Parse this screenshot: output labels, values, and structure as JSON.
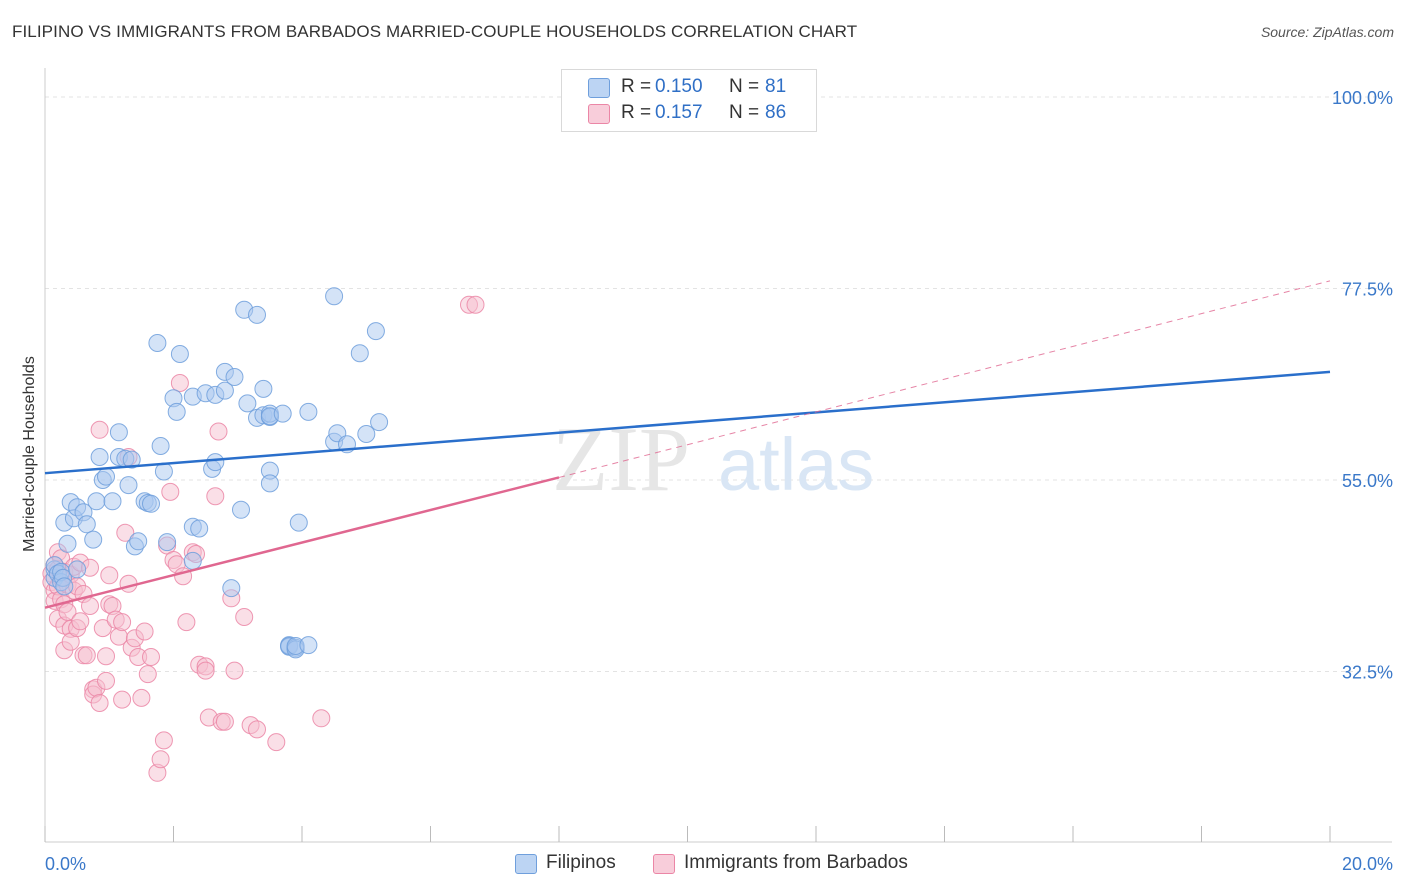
{
  "title": "FILIPINO VS IMMIGRANTS FROM BARBADOS MARRIED-COUPLE HOUSEHOLDS CORRELATION CHART",
  "source": "Source: ZipAtlas.com",
  "watermark": {
    "zip": "ZIP",
    "atlas": "atlas"
  },
  "legend_top": [
    {
      "r_label": "R =",
      "r_value": "0.150",
      "n_label": "N =",
      "n_value": "81"
    },
    {
      "r_label": "R =",
      "r_value": "0.157",
      "n_label": "N =",
      "n_value": "86"
    }
  ],
  "legend_bottom": [
    "Filipinos",
    "Immigrants from Barbados"
  ],
  "colors": {
    "blue_fill": "#a9c8ef",
    "blue_stroke": "#6f9fdc",
    "blue_line": "#2a6fcb",
    "pink_fill": "#f6bfd0",
    "pink_stroke": "#eb86a6",
    "pink_line": "#e06790",
    "tick_label": "#3a78c9",
    "grid": "#e3e3e3"
  },
  "chart_data": {
    "type": "scatter",
    "title": "FILIPINO VS IMMIGRANTS FROM BARBADOS MARRIED-COUPLE HOUSEHOLDS CORRELATION CHART",
    "xlabel": "",
    "ylabel": "Married-couple Households",
    "xlim": [
      0,
      20
    ],
    "ylim": [
      10,
      100
    ],
    "x_tick_labels": [
      "0.0%",
      "20.0%"
    ],
    "y_ticks": [
      32.5,
      55.0,
      77.5,
      100.0
    ],
    "y_tick_labels": [
      "32.5%",
      "55.0%",
      "77.5%",
      "100.0%"
    ],
    "grid": true,
    "legend_position": "top-center",
    "series": [
      {
        "name": "Filipinos",
        "color": "#6f9fdc",
        "R": 0.15,
        "N": 81,
        "trend": {
          "x": [
            0,
            20
          ],
          "y": [
            55.8,
            67.7
          ],
          "style": "solid"
        },
        "points": [
          [
            0.15,
            43.5
          ],
          [
            0.15,
            44.5
          ],
          [
            0.15,
            45
          ],
          [
            0.2,
            44
          ],
          [
            0.25,
            43
          ],
          [
            0.25,
            44.2
          ],
          [
            0.28,
            43.5
          ],
          [
            0.3,
            42.5
          ],
          [
            0.3,
            50
          ],
          [
            0.35,
            47.5
          ],
          [
            0.4,
            52.4
          ],
          [
            0.45,
            50.5
          ],
          [
            0.5,
            51.8
          ],
          [
            0.5,
            44.5
          ],
          [
            0.6,
            51.2
          ],
          [
            0.65,
            49.8
          ],
          [
            0.75,
            48
          ],
          [
            0.8,
            52.5
          ],
          [
            0.85,
            57.7
          ],
          [
            0.9,
            55
          ],
          [
            0.95,
            55.4
          ],
          [
            1.05,
            52.5
          ],
          [
            1.15,
            60.6
          ],
          [
            1.15,
            57.7
          ],
          [
            1.25,
            57.5
          ],
          [
            1.3,
            54.4
          ],
          [
            1.35,
            57.4
          ],
          [
            1.4,
            47.2
          ],
          [
            1.45,
            47.8
          ],
          [
            1.55,
            52.5
          ],
          [
            1.6,
            52.3
          ],
          [
            1.65,
            52.2
          ],
          [
            1.75,
            71.1
          ],
          [
            1.8,
            59
          ],
          [
            1.85,
            56
          ],
          [
            1.9,
            47.7
          ],
          [
            2,
            64.6
          ],
          [
            2.05,
            63
          ],
          [
            2.1,
            69.8
          ],
          [
            2.3,
            45.5
          ],
          [
            2.3,
            64.8
          ],
          [
            2.3,
            49.5
          ],
          [
            2.4,
            49.3
          ],
          [
            2.5,
            65.2
          ],
          [
            2.6,
            56.3
          ],
          [
            2.65,
            65
          ],
          [
            2.65,
            57.1
          ],
          [
            2.8,
            65.5
          ],
          [
            2.8,
            67.7
          ],
          [
            2.9,
            42.3
          ],
          [
            2.95,
            67.1
          ],
          [
            3.05,
            51.5
          ],
          [
            3.1,
            75
          ],
          [
            3.15,
            64
          ],
          [
            3.3,
            74.4
          ],
          [
            3.3,
            62.3
          ],
          [
            3.4,
            62.6
          ],
          [
            3.4,
            65.7
          ],
          [
            3.5,
            56.1
          ],
          [
            3.5,
            62.4
          ],
          [
            3.5,
            54.6
          ],
          [
            3.5,
            62.8
          ],
          [
            3.5,
            62.5
          ],
          [
            3.7,
            62.8
          ],
          [
            3.8,
            35.6
          ],
          [
            3.8,
            35.4
          ],
          [
            3.8,
            35.5
          ],
          [
            3.9,
            35.3
          ],
          [
            3.9,
            35.1
          ],
          [
            3.9,
            35.5
          ],
          [
            3.95,
            50
          ],
          [
            4.1,
            63
          ],
          [
            4.1,
            35.6
          ],
          [
            4.5,
            76.6
          ],
          [
            4.5,
            59.5
          ],
          [
            4.55,
            60.5
          ],
          [
            4.7,
            59.2
          ],
          [
            4.9,
            69.9
          ],
          [
            5,
            60.4
          ],
          [
            5.2,
            61.8
          ],
          [
            5.15,
            72.5
          ]
        ]
      },
      {
        "name": "Immigrants from Barbados",
        "color": "#eb86a6",
        "R": 0.157,
        "N": 86,
        "trend": {
          "x": [
            0,
            8
          ],
          "y": [
            40,
            55.3
          ],
          "style": "solid",
          "dashed_extension": {
            "x": [
              8,
              20
            ],
            "y": [
              55.3,
              78.4
            ]
          }
        },
        "points": [
          [
            0.1,
            44
          ],
          [
            0.1,
            43
          ],
          [
            0.15,
            45
          ],
          [
            0.15,
            42
          ],
          [
            0.15,
            40.8
          ],
          [
            0.2,
            46.5
          ],
          [
            0.2,
            44.5
          ],
          [
            0.2,
            42.5
          ],
          [
            0.2,
            38.7
          ],
          [
            0.25,
            45.8
          ],
          [
            0.25,
            43.5
          ],
          [
            0.25,
            41
          ],
          [
            0.3,
            44.2
          ],
          [
            0.3,
            40.4
          ],
          [
            0.3,
            37.9
          ],
          [
            0.3,
            35
          ],
          [
            0.35,
            42.7
          ],
          [
            0.35,
            39.5
          ],
          [
            0.4,
            43.9
          ],
          [
            0.4,
            37.5
          ],
          [
            0.4,
            36
          ],
          [
            0.45,
            44.8
          ],
          [
            0.45,
            42
          ],
          [
            0.5,
            42.5
          ],
          [
            0.5,
            37.6
          ],
          [
            0.55,
            45.3
          ],
          [
            0.55,
            38.4
          ],
          [
            0.6,
            41.6
          ],
          [
            0.6,
            34.4
          ],
          [
            0.65,
            34.4
          ],
          [
            0.7,
            44.7
          ],
          [
            0.7,
            40.2
          ],
          [
            0.75,
            30.4
          ],
          [
            0.75,
            29.8
          ],
          [
            0.8,
            30.6
          ],
          [
            0.85,
            60.9
          ],
          [
            0.85,
            28.8
          ],
          [
            0.9,
            37.6
          ],
          [
            0.95,
            34.3
          ],
          [
            0.95,
            31.4
          ],
          [
            1,
            43.8
          ],
          [
            1,
            40.4
          ],
          [
            1.05,
            40.2
          ],
          [
            1.1,
            38.6
          ],
          [
            1.15,
            36.6
          ],
          [
            1.2,
            38.3
          ],
          [
            1.2,
            29.2
          ],
          [
            1.25,
            48.8
          ],
          [
            1.3,
            57.7
          ],
          [
            1.3,
            42.8
          ],
          [
            1.35,
            35.3
          ],
          [
            1.4,
            36.4
          ],
          [
            1.45,
            34.2
          ],
          [
            1.5,
            29.4
          ],
          [
            1.55,
            37.2
          ],
          [
            1.6,
            32.2
          ],
          [
            1.65,
            34.2
          ],
          [
            1.75,
            20.6
          ],
          [
            1.8,
            22.2
          ],
          [
            1.85,
            24.4
          ],
          [
            1.9,
            47.3
          ],
          [
            1.95,
            53.6
          ],
          [
            2,
            45.6
          ],
          [
            2.05,
            45.1
          ],
          [
            2.1,
            66.4
          ],
          [
            2.15,
            43.7
          ],
          [
            2.2,
            38.3
          ],
          [
            2.3,
            46.5
          ],
          [
            2.35,
            46.3
          ],
          [
            2.4,
            33.3
          ],
          [
            2.5,
            33.1
          ],
          [
            2.5,
            32.6
          ],
          [
            2.55,
            27.1
          ],
          [
            2.65,
            53.1
          ],
          [
            2.7,
            60.7
          ],
          [
            2.75,
            26.6
          ],
          [
            2.8,
            26.6
          ],
          [
            2.9,
            41.1
          ],
          [
            2.95,
            32.6
          ],
          [
            3.1,
            38.9
          ],
          [
            3.2,
            26.2
          ],
          [
            3.3,
            25.7
          ],
          [
            3.6,
            24.2
          ],
          [
            4.3,
            27
          ],
          [
            6.6,
            75.6
          ],
          [
            6.7,
            75.6
          ]
        ]
      }
    ]
  }
}
